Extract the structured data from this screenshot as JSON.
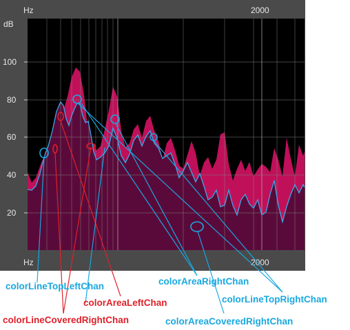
{
  "units": {
    "freq": "Hz",
    "level": "dB"
  },
  "top_ticks": [
    "2000"
  ],
  "bottom_ticks": [
    "2000"
  ],
  "y_ticks": [
    "100",
    "80",
    "60",
    "40",
    "20"
  ],
  "colors": {
    "cyan": "#19a8e0",
    "red": "#e0202a",
    "area_left": "#c0105a",
    "area_covered": "#5a0a3a",
    "plot_bg": "#000000",
    "frame": "#4a4a4a"
  },
  "callouts": {
    "line_top_left": "colorLineTopLeftChan",
    "area_left": "colorAreaLeftChan",
    "line_covered_right": "colorLineCoveredRightChan",
    "area_right": "colorAreaRightChan",
    "line_top_right": "colorLineTopRightChan",
    "area_covered_right": "colorAreaCoveredRightChan"
  }
}
